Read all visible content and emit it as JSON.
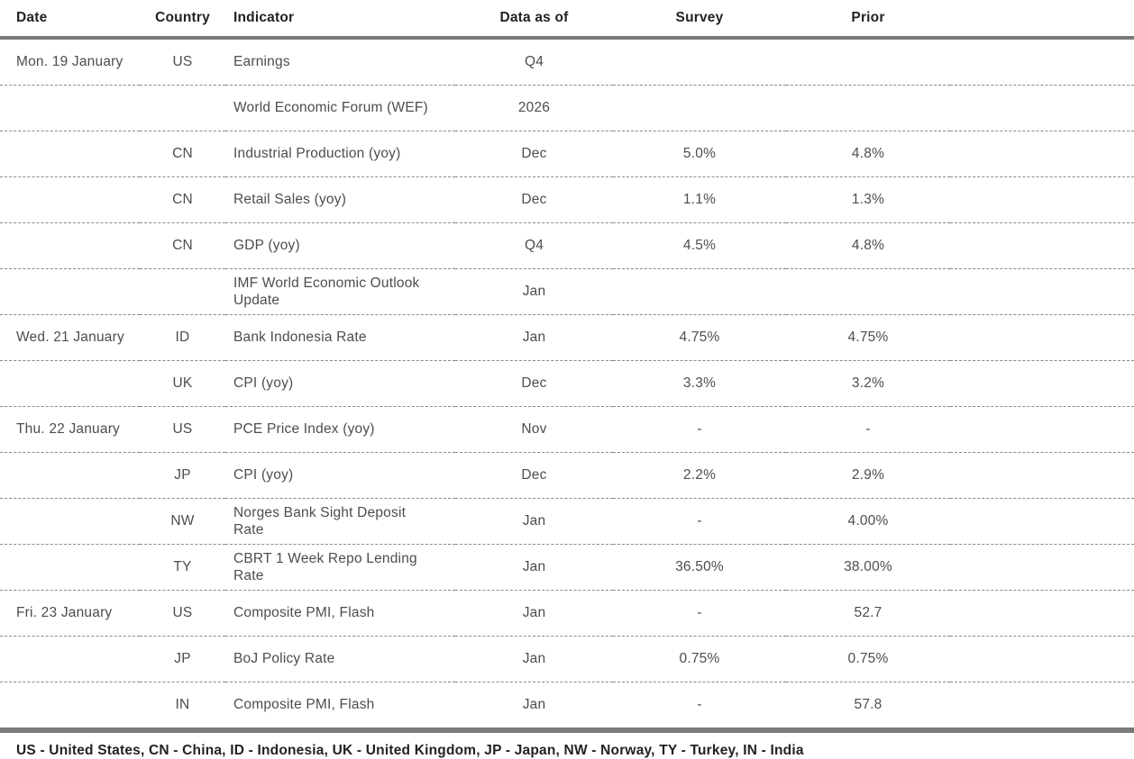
{
  "table": {
    "columns": [
      {
        "label": "Date"
      },
      {
        "label": "Country"
      },
      {
        "label": "Indicator"
      },
      {
        "label": "Data as of"
      },
      {
        "label": "Survey"
      },
      {
        "label": "Prior"
      }
    ],
    "rows": [
      {
        "date": "Mon. 19 January",
        "country": "US",
        "indicator": "Earnings",
        "data_as_of": "Q4",
        "survey": "",
        "prior": ""
      },
      {
        "date": "",
        "country": "",
        "indicator": "World Economic Forum (WEF)",
        "data_as_of": "2026",
        "survey": "",
        "prior": ""
      },
      {
        "date": "",
        "country": "CN",
        "indicator": "Industrial Production (yoy)",
        "data_as_of": "Dec",
        "survey": "5.0%",
        "prior": "4.8%"
      },
      {
        "date": "",
        "country": "CN",
        "indicator": "Retail Sales (yoy)",
        "data_as_of": "Dec",
        "survey": "1.1%",
        "prior": "1.3%"
      },
      {
        "date": "",
        "country": "CN",
        "indicator": "GDP (yoy)",
        "data_as_of": "Q4",
        "survey": "4.5%",
        "prior": "4.8%"
      },
      {
        "date": "",
        "country": "",
        "indicator": "IMF World Economic Outlook\nUpdate",
        "data_as_of": "Jan",
        "survey": "",
        "prior": ""
      },
      {
        "date": "Wed. 21 January",
        "country": "ID",
        "indicator": "Bank Indonesia Rate",
        "data_as_of": "Jan",
        "survey": "4.75%",
        "prior": "4.75%"
      },
      {
        "date": "",
        "country": "UK",
        "indicator": "CPI (yoy)",
        "data_as_of": "Dec",
        "survey": "3.3%",
        "prior": "3.2%"
      },
      {
        "date": "Thu. 22 January",
        "country": "US",
        "indicator": "PCE Price Index (yoy)",
        "data_as_of": "Nov",
        "survey": "-",
        "prior": "-"
      },
      {
        "date": "",
        "country": "JP",
        "indicator": "CPI (yoy)",
        "data_as_of": "Dec",
        "survey": "2.2%",
        "prior": "2.9%"
      },
      {
        "date": "",
        "country": "NW",
        "indicator": "Norges Bank Sight Deposit\nRate",
        "data_as_of": "Jan",
        "survey": "-",
        "prior": "4.00%"
      },
      {
        "date": "",
        "country": "TY",
        "indicator": "CBRT 1 Week Repo Lending\nRate",
        "data_as_of": "Jan",
        "survey": "36.50%",
        "prior": "38.00%"
      },
      {
        "date": "Fri. 23 January",
        "country": "US",
        "indicator": "Composite PMI, Flash",
        "data_as_of": "Jan",
        "survey": "-",
        "prior": "52.7"
      },
      {
        "date": "",
        "country": "JP",
        "indicator": "BoJ Policy Rate",
        "data_as_of": "Jan",
        "survey": "0.75%",
        "prior": "0.75%"
      },
      {
        "date": "",
        "country": "IN",
        "indicator": "Composite PMI, Flash",
        "data_as_of": "Jan",
        "survey": "-",
        "prior": "57.8"
      }
    ]
  },
  "footer": {
    "legend": "US - United States, CN - China, ID - Indonesia, UK - United Kingdom, JP - Japan, NW - Norway, TY - Turkey, IN - India"
  },
  "colors": {
    "header_rule": "#7a7a7a",
    "row_divider": "#8a8a8a",
    "body_text": "#4d4d4d",
    "heading_text": "#222222",
    "background": "#ffffff"
  }
}
